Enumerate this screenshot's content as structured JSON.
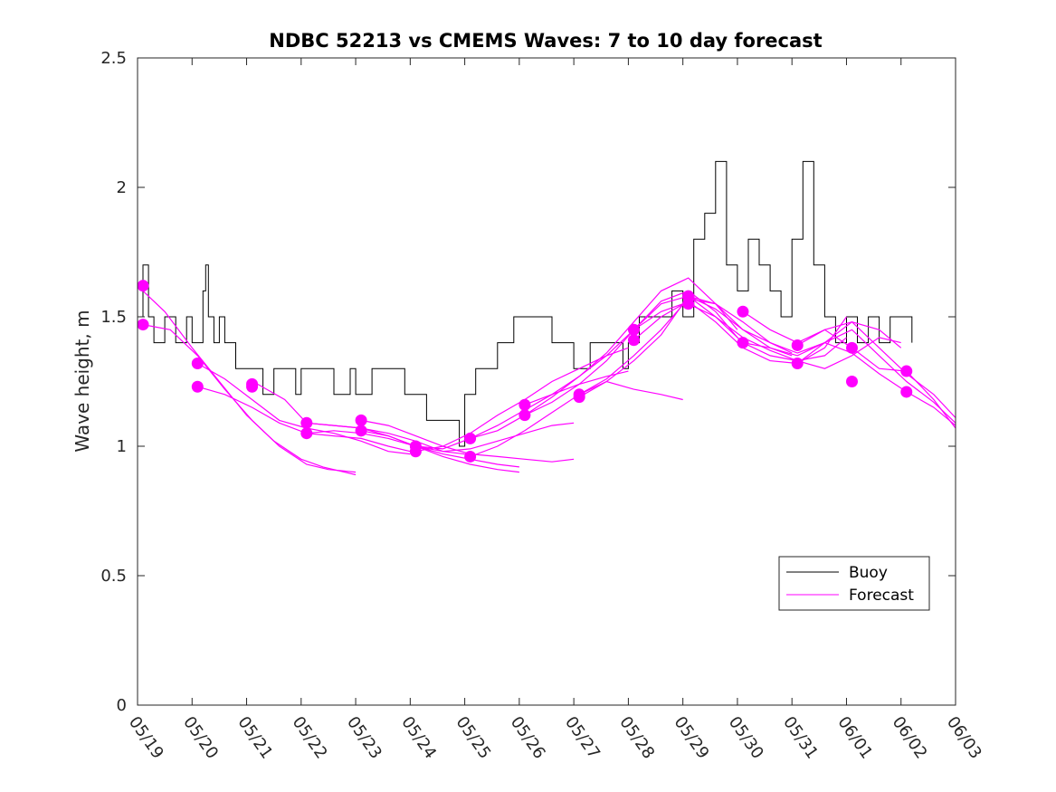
{
  "chart_data": {
    "type": "line",
    "title": "NDBC 52213 vs CMEMS Waves: 7 to 10 day forecast",
    "ylabel": "Wave height, m",
    "xlabel": "",
    "ylim": [
      0,
      2.5
    ],
    "yticks": [
      "0",
      "0.5",
      "1",
      "1.5",
      "2",
      "2.5"
    ],
    "xlim": [
      "05/19",
      "06/03"
    ],
    "xticks": [
      "05/19",
      "05/20",
      "05/21",
      "05/22",
      "05/23",
      "05/24",
      "05/25",
      "05/26",
      "05/27",
      "05/28",
      "05/29",
      "05/30",
      "05/31",
      "06/01",
      "06/02",
      "06/03"
    ],
    "grid": false,
    "legend": {
      "placement": "lower-right",
      "entries": [
        {
          "name": "Buoy",
          "color": "#000000"
        },
        {
          "name": "Forecast",
          "color": "#ff00ff"
        }
      ]
    },
    "buoy": {
      "name": "Buoy",
      "color": "#000000",
      "day_offsets": [
        0.0,
        0.1,
        0.2,
        0.3,
        0.5,
        0.7,
        0.9,
        1.0,
        1.2,
        1.25,
        1.3,
        1.4,
        1.5,
        1.6,
        1.8,
        2.0,
        2.2,
        2.3,
        2.5,
        2.7,
        2.9,
        3.0,
        3.3,
        3.6,
        3.9,
        4.0,
        4.3,
        4.6,
        4.9,
        5.0,
        5.3,
        5.6,
        5.9,
        6.0,
        6.2,
        6.4,
        6.6,
        6.9,
        7.0,
        7.3,
        7.6,
        7.9,
        8.0,
        8.3,
        8.6,
        8.9,
        9.0,
        9.2,
        9.4,
        9.6,
        9.8,
        10.0,
        10.2,
        10.4,
        10.6,
        10.8,
        11.0,
        11.2,
        11.4,
        11.6,
        11.8,
        12.0,
        12.2,
        12.4,
        12.6,
        12.8,
        13.0,
        13.2,
        13.4,
        13.6,
        13.8,
        14.0,
        14.2
      ],
      "values": [
        1.5,
        1.7,
        1.5,
        1.4,
        1.5,
        1.4,
        1.5,
        1.4,
        1.6,
        1.7,
        1.5,
        1.4,
        1.5,
        1.4,
        1.3,
        1.3,
        1.3,
        1.2,
        1.3,
        1.3,
        1.2,
        1.3,
        1.3,
        1.2,
        1.3,
        1.2,
        1.3,
        1.3,
        1.2,
        1.2,
        1.1,
        1.1,
        1.0,
        1.2,
        1.3,
        1.3,
        1.4,
        1.5,
        1.5,
        1.5,
        1.4,
        1.4,
        1.3,
        1.4,
        1.4,
        1.3,
        1.4,
        1.5,
        1.5,
        1.5,
        1.6,
        1.5,
        1.8,
        1.9,
        2.1,
        1.7,
        1.6,
        1.8,
        1.7,
        1.6,
        1.5,
        1.8,
        2.1,
        1.7,
        1.5,
        1.4,
        1.5,
        1.4,
        1.5,
        1.4,
        1.5,
        1.5,
        1.4
      ]
    },
    "forecast_runs": [
      {
        "day_offsets": [
          0.1,
          0.5,
          1.0,
          1.5,
          2.0,
          2.5,
          3.0,
          3.4,
          4.0
        ],
        "values": [
          1.6,
          1.52,
          1.38,
          1.25,
          1.12,
          1.02,
          0.95,
          0.92,
          0.89
        ]
      },
      {
        "day_offsets": [
          0.1,
          0.6,
          1.1,
          1.6,
          2.1,
          2.6,
          3.1,
          3.5,
          4.0
        ],
        "values": [
          1.47,
          1.45,
          1.35,
          1.22,
          1.1,
          1.0,
          0.93,
          0.91,
          0.9
        ]
      },
      {
        "day_offsets": [
          1.1,
          1.6,
          2.1,
          2.6,
          3.1,
          3.6,
          4.1,
          4.6,
          5.0
        ],
        "values": [
          1.32,
          1.26,
          1.18,
          1.1,
          1.07,
          1.05,
          1.02,
          0.98,
          0.97
        ]
      },
      {
        "day_offsets": [
          1.1,
          1.6,
          2.1,
          2.6,
          3.1,
          3.6,
          4.1,
          4.6,
          5.0
        ],
        "values": [
          1.23,
          1.2,
          1.15,
          1.09,
          1.05,
          1.04,
          1.03,
          1.0,
          0.98
        ]
      },
      {
        "day_offsets": [
          2.2,
          2.7,
          3.1,
          3.6,
          4.1,
          4.6,
          5.1,
          5.6,
          6.0
        ],
        "values": [
          1.24,
          1.18,
          1.09,
          1.08,
          1.07,
          1.05,
          1.02,
          0.98,
          0.97
        ]
      },
      {
        "day_offsets": [
          3.1,
          3.6,
          4.1,
          4.6,
          5.1,
          5.6,
          6.1,
          6.6,
          7.0
        ],
        "values": [
          1.09,
          1.08,
          1.07,
          1.04,
          1.0,
          0.97,
          0.95,
          0.93,
          0.92
        ]
      },
      {
        "day_offsets": [
          3.1,
          3.6,
          4.1,
          4.6,
          5.1,
          5.6,
          6.1,
          6.6,
          7.0
        ],
        "values": [
          1.05,
          1.06,
          1.05,
          1.03,
          1.0,
          0.96,
          0.93,
          0.91,
          0.9
        ]
      },
      {
        "day_offsets": [
          4.1,
          4.6,
          5.1,
          5.6,
          6.1,
          6.6,
          7.1,
          7.6,
          8.0
        ],
        "values": [
          1.1,
          1.08,
          1.04,
          1.0,
          0.97,
          0.96,
          0.95,
          0.94,
          0.95
        ]
      },
      {
        "day_offsets": [
          4.1,
          4.6,
          5.1,
          5.6,
          6.1,
          6.6,
          7.1,
          7.6,
          8.0
        ],
        "values": [
          1.06,
          1.04,
          1.0,
          0.98,
          0.99,
          1.02,
          1.05,
          1.08,
          1.09
        ]
      },
      {
        "day_offsets": [
          5.1,
          5.6,
          6.1,
          6.6,
          7.1,
          7.6,
          8.1,
          8.6,
          9.0
        ],
        "values": [
          1.0,
          0.99,
          1.03,
          1.08,
          1.14,
          1.2,
          1.24,
          1.27,
          1.29
        ]
      },
      {
        "day_offsets": [
          5.1,
          5.6,
          6.1,
          6.6,
          7.1,
          7.6,
          8.1,
          8.6,
          9.0
        ],
        "values": [
          0.98,
          1.0,
          1.05,
          1.12,
          1.18,
          1.25,
          1.3,
          1.35,
          1.38
        ]
      },
      {
        "day_offsets": [
          6.1,
          6.6,
          7.1,
          7.6,
          8.1,
          8.6,
          9.1,
          9.6,
          10.0
        ],
        "values": [
          1.03,
          1.06,
          1.12,
          1.19,
          1.27,
          1.35,
          1.45,
          1.52,
          1.55
        ]
      },
      {
        "day_offsets": [
          6.1,
          6.6,
          7.1,
          7.6,
          8.1,
          8.6,
          9.1,
          9.6,
          10.0
        ],
        "values": [
          0.96,
          1.0,
          1.06,
          1.13,
          1.2,
          1.25,
          1.22,
          1.2,
          1.18
        ]
      },
      {
        "day_offsets": [
          7.1,
          7.6,
          8.1,
          8.6,
          9.1,
          9.6,
          10.1,
          10.6,
          11.0
        ],
        "values": [
          1.16,
          1.2,
          1.27,
          1.36,
          1.48,
          1.6,
          1.65,
          1.55,
          1.45
        ]
      },
      {
        "day_offsets": [
          7.1,
          7.6,
          8.1,
          8.6,
          9.1,
          9.6,
          10.1,
          10.6,
          11.0
        ],
        "values": [
          1.12,
          1.17,
          1.24,
          1.33,
          1.45,
          1.56,
          1.6,
          1.52,
          1.42
        ]
      },
      {
        "day_offsets": [
          8.1,
          8.6,
          9.1,
          9.6,
          10.1,
          10.6,
          11.1,
          11.6,
          12.0
        ],
        "values": [
          1.2,
          1.26,
          1.35,
          1.45,
          1.57,
          1.55,
          1.48,
          1.4,
          1.36
        ]
      },
      {
        "day_offsets": [
          8.1,
          8.6,
          9.1,
          9.6,
          10.1,
          10.6,
          11.1,
          11.6,
          12.0
        ],
        "values": [
          1.19,
          1.25,
          1.33,
          1.43,
          1.58,
          1.53,
          1.45,
          1.38,
          1.35
        ]
      },
      {
        "day_offsets": [
          9.1,
          9.6,
          10.1,
          10.6,
          11.1,
          11.6,
          12.1,
          12.6,
          13.0
        ],
        "values": [
          1.45,
          1.55,
          1.58,
          1.5,
          1.4,
          1.35,
          1.33,
          1.35,
          1.42
        ]
      },
      {
        "day_offsets": [
          9.1,
          9.6,
          10.1,
          10.6,
          11.1,
          11.6,
          12.1,
          12.6,
          13.0
        ],
        "values": [
          1.41,
          1.5,
          1.56,
          1.48,
          1.38,
          1.33,
          1.32,
          1.38,
          1.5
        ]
      },
      {
        "day_offsets": [
          10.1,
          10.6,
          11.1,
          11.6,
          12.1,
          12.6,
          13.1,
          13.6,
          14.0
        ],
        "values": [
          1.58,
          1.55,
          1.45,
          1.4,
          1.36,
          1.4,
          1.48,
          1.45,
          1.38
        ]
      },
      {
        "day_offsets": [
          10.1,
          10.6,
          11.1,
          11.6,
          12.1,
          12.6,
          13.1,
          13.6,
          14.0
        ],
        "values": [
          1.55,
          1.5,
          1.42,
          1.37,
          1.33,
          1.3,
          1.35,
          1.42,
          1.4
        ]
      },
      {
        "day_offsets": [
          11.1,
          11.6,
          12.1,
          12.6,
          13.1,
          13.6,
          14.1,
          14.6,
          15.0
        ],
        "values": [
          1.52,
          1.45,
          1.4,
          1.45,
          1.48,
          1.38,
          1.28,
          1.2,
          1.11
        ]
      },
      {
        "day_offsets": [
          11.1,
          11.6,
          12.1,
          12.6,
          13.1,
          13.6,
          14.1,
          14.6,
          15.0
        ],
        "values": [
          1.4,
          1.38,
          1.35,
          1.4,
          1.45,
          1.35,
          1.25,
          1.17,
          1.09
        ]
      },
      {
        "day_offsets": [
          12.1,
          12.6,
          13.1,
          13.6,
          14.1,
          14.6,
          15.0
        ],
        "values": [
          1.39,
          1.45,
          1.38,
          1.3,
          1.29,
          1.18,
          1.07
        ]
      },
      {
        "day_offsets": [
          12.1,
          12.6,
          13.1,
          13.6,
          14.1,
          14.6,
          15.0
        ],
        "values": [
          1.32,
          1.4,
          1.36,
          1.28,
          1.21,
          1.15,
          1.08
        ]
      }
    ],
    "forecast_start_markers": {
      "day_offsets": [
        0.1,
        0.1,
        1.1,
        1.1,
        2.1,
        2.1,
        3.1,
        3.1,
        4.1,
        4.1,
        5.1,
        5.1,
        6.1,
        6.1,
        7.1,
        7.1,
        8.1,
        8.1,
        9.1,
        9.1,
        10.1,
        10.1,
        11.1,
        11.1,
        12.1,
        12.1
      ],
      "values": [
        1.62,
        1.47,
        1.32,
        1.23,
        1.24,
        1.23,
        1.09,
        1.05,
        1.1,
        1.06,
        1.0,
        0.98,
        1.03,
        0.96,
        1.16,
        1.12,
        1.2,
        1.19,
        1.45,
        1.41,
        1.58,
        1.55,
        1.52,
        1.4,
        1.39,
        1.32
      ]
    }
  },
  "extra_markers": {
    "day_offsets": [
      13.1,
      13.1,
      14.1,
      14.1
    ],
    "values": [
      1.38,
      1.25,
      1.29,
      1.21
    ]
  }
}
